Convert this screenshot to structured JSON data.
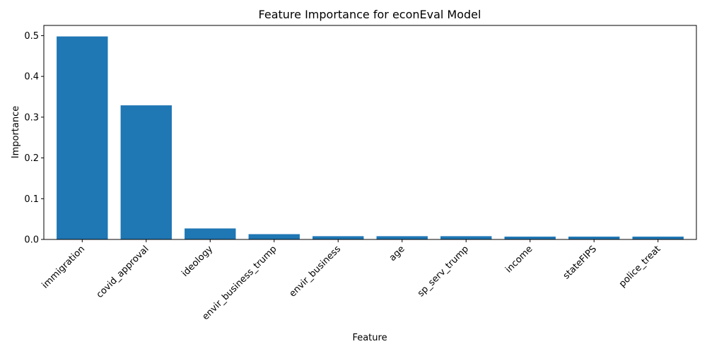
{
  "chart_data": {
    "type": "bar",
    "title": "Feature Importance for econEval Model",
    "xlabel": "Feature",
    "ylabel": "Importance",
    "categories": [
      "immigration",
      "covid_approval",
      "ideology",
      "envir_business_trump",
      "envir_business",
      "age",
      "sp_serv_trump",
      "income",
      "stateFIPS",
      "police_treat"
    ],
    "values": [
      0.498,
      0.329,
      0.027,
      0.013,
      0.008,
      0.008,
      0.008,
      0.007,
      0.007,
      0.007
    ],
    "ylim": [
      0,
      0.525
    ],
    "yticks": [
      "0.0",
      "0.1",
      "0.2",
      "0.3",
      "0.4",
      "0.5"
    ],
    "ytick_values": [
      0.0,
      0.1,
      0.2,
      0.3,
      0.4,
      0.5
    ],
    "bar_color": "#1f77b4",
    "grid": false,
    "xtick_rotation_deg": 45
  }
}
